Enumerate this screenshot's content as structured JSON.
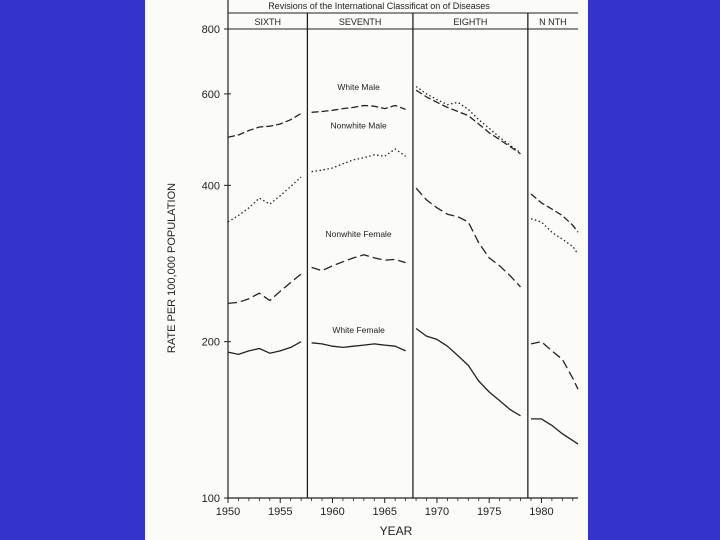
{
  "colors": {
    "background": "#3434cc",
    "paper": "#fbfbf8",
    "ink": "#222222"
  },
  "chart_data": {
    "type": "line",
    "title": "Revisions of the International Classificat on of Diseases",
    "xlabel": "YEAR",
    "ylabel": "RATE PER 100,000 POPULATION",
    "y_scale": "log",
    "xlim": [
      1950,
      1983.5
    ],
    "ylim": [
      100,
      800
    ],
    "x_ticks": [
      1950,
      1955,
      1960,
      1965,
      1970,
      1975,
      1980
    ],
    "x_tick_labels": [
      "1950",
      "1955",
      "1960",
      "1965",
      "1970",
      "1975",
      "1980"
    ],
    "y_ticks": [
      100,
      200,
      400,
      600,
      800
    ],
    "y_tick_labels": [
      "100",
      "200",
      "400",
      "600",
      "800"
    ],
    "grid": false,
    "legend": "none",
    "revisions": [
      {
        "label": "SIXTH",
        "start": 1950,
        "end": 1957.6
      },
      {
        "label": "SEVENTH",
        "start": 1957.6,
        "end": 1967.7
      },
      {
        "label": "EIGHTH",
        "start": 1967.7,
        "end": 1978.7
      },
      {
        "label": "N NTH",
        "start": 1978.7,
        "end": 1983.5
      }
    ],
    "series": [
      {
        "name": "White Male",
        "style": "dash",
        "segments": [
          {
            "x": [
              1950,
              1951,
              1952,
              1953,
              1954,
              1955,
              1956,
              1957
            ],
            "y": [
              495,
              500,
              510,
              518,
              520,
              525,
              535,
              550
            ]
          },
          {
            "x": [
              1958,
              1959,
              1960,
              1961,
              1962,
              1963,
              1964,
              1965,
              1966,
              1967
            ],
            "y": [
              553,
              555,
              558,
              562,
              565,
              570,
              568,
              562,
              570,
              560
            ]
          },
          {
            "x": [
              1968,
              1969,
              1970,
              1971,
              1972,
              1973,
              1974,
              1975,
              1976,
              1977,
              1978
            ],
            "y": [
              610,
              592,
              578,
              565,
              555,
              545,
              525,
              505,
              490,
              475,
              460
            ]
          },
          {
            "x": [
              1979,
              1980,
              1981,
              1982,
              1983,
              1983.5
            ],
            "y": [
              385,
              370,
              360,
              350,
              335,
              325
            ]
          }
        ]
      },
      {
        "name": "Nonwhite Male",
        "style": "dot",
        "segments": [
          {
            "x": [
              1950,
              1951,
              1952,
              1953,
              1954,
              1955,
              1956,
              1957
            ],
            "y": [
              340,
              350,
              362,
              378,
              368,
              382,
              398,
              415
            ]
          },
          {
            "x": [
              1958,
              1959,
              1960,
              1961,
              1962,
              1963,
              1964,
              1965,
              1966,
              1967
            ],
            "y": [
              425,
              428,
              432,
              440,
              448,
              452,
              458,
              455,
              470,
              455
            ]
          },
          {
            "x": [
              1968,
              1969,
              1970,
              1971,
              1972,
              1973,
              1974,
              1975,
              1976,
              1977,
              1978
            ],
            "y": [
              620,
              600,
              585,
              572,
              578,
              560,
              535,
              515,
              495,
              478,
              462
            ]
          },
          {
            "x": [
              1979,
              1980,
              1981,
              1982,
              1983,
              1983.5
            ],
            "y": [
              345,
              340,
              325,
              315,
              305,
              295
            ]
          }
        ]
      },
      {
        "name": "Nonwhite Female",
        "style": "longdash",
        "segments": [
          {
            "x": [
              1950,
              1951,
              1952,
              1953,
              1954,
              1955,
              1956,
              1957
            ],
            "y": [
              237,
              238,
              242,
              248,
              240,
              250,
              260,
              270
            ]
          },
          {
            "x": [
              1958,
              1959,
              1960,
              1961,
              1962,
              1963,
              1964,
              1965,
              1966,
              1967
            ],
            "y": [
              278,
              274,
              280,
              285,
              290,
              294,
              290,
              287,
              288,
              284
            ]
          },
          {
            "x": [
              1968,
              1969,
              1970,
              1971,
              1972,
              1973,
              1974,
              1975,
              1976,
              1977,
              1978
            ],
            "y": [
              395,
              375,
              362,
              352,
              348,
              340,
              310,
              290,
              280,
              268,
              255
            ]
          },
          {
            "x": [
              1979,
              1980,
              1981,
              1982,
              1983,
              1983.5
            ],
            "y": [
              198,
              200,
              192,
              185,
              170,
              162
            ]
          }
        ]
      },
      {
        "name": "White Female",
        "style": "solid",
        "segments": [
          {
            "x": [
              1950,
              1951,
              1952,
              1953,
              1954,
              1955,
              1956,
              1957
            ],
            "y": [
              191,
              189,
              192,
              194,
              190,
              192,
              195,
              200
            ]
          },
          {
            "x": [
              1958,
              1959,
              1960,
              1961,
              1962,
              1963,
              1964,
              1965,
              1966,
              1967
            ],
            "y": [
              199,
              198,
              196,
              195,
              196,
              197,
              198,
              197,
              196,
              192
            ]
          },
          {
            "x": [
              1968,
              1969,
              1970,
              1971,
              1972,
              1973,
              1974,
              1975,
              1976,
              1977,
              1978
            ],
            "y": [
              212,
              205,
              202,
              196,
              188,
              180,
              168,
              160,
              154,
              148,
              144
            ]
          },
          {
            "x": [
              1979,
              1980,
              1981,
              1982,
              1983,
              1983.5
            ],
            "y": [
              142,
              142,
              138,
              133,
              129,
              127
            ]
          }
        ]
      }
    ]
  }
}
